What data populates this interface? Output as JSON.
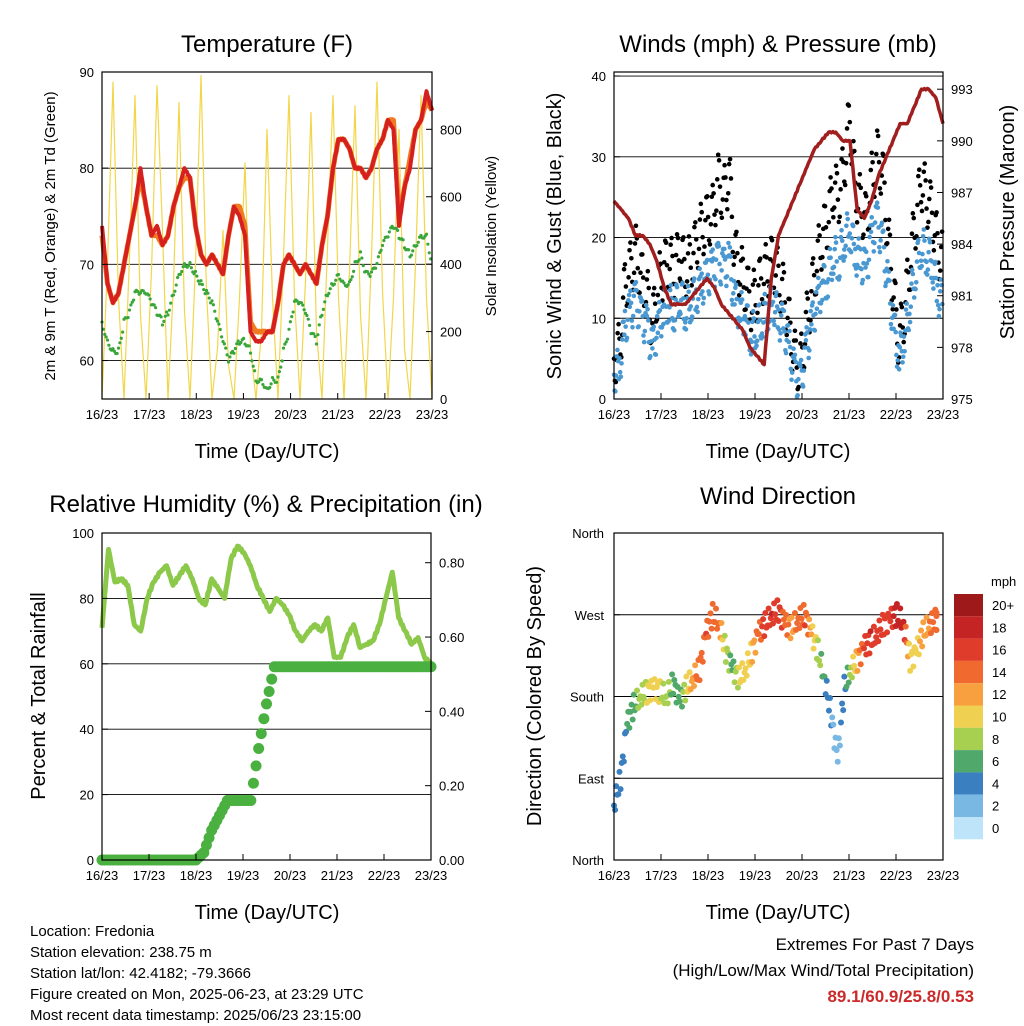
{
  "chart_data": [
    {
      "type": "line",
      "title": "Temperature (F)",
      "xlabel": "Time (Day/UTC)",
      "ylabel": "2m & 9m T (Red, Orange) & 2m Td (Green)",
      "y2label": "Solar Insolation (Yellow)",
      "x_ticks": [
        "16/23",
        "17/23",
        "18/23",
        "19/23",
        "20/23",
        "21/23",
        "22/23",
        "23/23"
      ],
      "y_ticks": [
        60,
        70,
        80,
        90
      ],
      "y2_ticks": [
        0,
        200,
        400,
        600,
        800
      ],
      "ylim": [
        56,
        90
      ],
      "y2lim": [
        0,
        970
      ],
      "colors": {
        "t2m": "#d62020",
        "t9m": "#f07a20",
        "td": "#3aa63a",
        "solar": "#f2d64a"
      },
      "series": [
        {
          "key": "t2m",
          "values": [
            74,
            68,
            66,
            67,
            70,
            73,
            76,
            80,
            76,
            73,
            74,
            72,
            73,
            76,
            78,
            80,
            79,
            74,
            71,
            70,
            71,
            70,
            69,
            73,
            76,
            75,
            73,
            63,
            62,
            62,
            63,
            63,
            66,
            70,
            71,
            70,
            69,
            70,
            69,
            68,
            72,
            75,
            80,
            83,
            83,
            82,
            80,
            80,
            79,
            80,
            82,
            83,
            85,
            84,
            74,
            78,
            80,
            84,
            85,
            88,
            86
          ]
        },
        {
          "key": "t9m",
          "values": [
            73,
            68,
            66,
            67,
            70,
            73,
            76,
            79,
            76,
            73,
            73,
            72,
            73,
            76,
            78,
            79,
            79,
            74,
            71,
            70,
            71,
            70,
            69,
            73,
            76,
            76,
            74,
            64,
            63,
            63,
            63,
            63,
            66,
            70,
            71,
            70,
            69,
            70,
            69,
            68,
            72,
            75,
            80,
            83,
            83,
            82,
            80,
            80,
            79,
            80,
            82,
            83,
            85,
            85,
            75,
            78,
            81,
            84,
            85,
            87,
            86
          ]
        },
        {
          "key": "td",
          "values": [
            64,
            62,
            61,
            61,
            64,
            65,
            67,
            67,
            67,
            66,
            65,
            64,
            65,
            67,
            69,
            70,
            70,
            69,
            68,
            67,
            66,
            64,
            62,
            60,
            61,
            62,
            62,
            61,
            58,
            58,
            57,
            58,
            58,
            61,
            63,
            66,
            66,
            65,
            63,
            62,
            65,
            67,
            68,
            69,
            68,
            68,
            70,
            71,
            69,
            69,
            70,
            72,
            73,
            74,
            73,
            72,
            71,
            72,
            73,
            73,
            70
          ]
        },
        {
          "key": "solar",
          "values": [
            0,
            400,
            940,
            300,
            0,
            420,
            900,
            250,
            0,
            380,
            930,
            500,
            0,
            340,
            880,
            260,
            0,
            400,
            960,
            320,
            0,
            150,
            500,
            100,
            0,
            300,
            700,
            150,
            0,
            200,
            800,
            300,
            0,
            420,
            900,
            300,
            0,
            350,
            850,
            200,
            0,
            450,
            900,
            300,
            0,
            380,
            870,
            250,
            0,
            420,
            940,
            320,
            0,
            300,
            800,
            150,
            0,
            400,
            900,
            300,
            0
          ]
        }
      ]
    },
    {
      "type": "line",
      "title": "Winds (mph) & Pressure (mb)",
      "xlabel": "Time (Day/UTC)",
      "ylabel": "Sonic Wind & Gust (Blue, Black)",
      "y2label": "Station Pressure (Maroon)",
      "x_ticks": [
        "16/23",
        "17/23",
        "18/23",
        "19/23",
        "20/23",
        "21/23",
        "22/23",
        "23/23"
      ],
      "y_ticks": [
        0,
        10,
        20,
        30,
        40
      ],
      "y2_ticks": [
        975,
        978,
        981,
        984,
        987,
        990,
        993
      ],
      "ylim": [
        0,
        40.5
      ],
      "y2lim": [
        975,
        994
      ],
      "colors": {
        "wind": "#4a98d2",
        "gust": "#000000",
        "pressure": "#a01e1e"
      },
      "series": [
        {
          "key": "wind",
          "values": [
            3,
            4,
            9,
            11,
            12,
            10,
            9,
            6,
            9,
            11,
            12,
            11,
            13,
            11,
            12,
            13,
            14,
            15,
            16,
            17,
            16,
            17,
            12,
            11,
            10,
            8,
            9,
            10,
            11,
            12,
            10,
            9,
            6,
            3,
            2,
            6,
            9,
            12,
            14,
            15,
            18,
            17,
            20,
            21,
            18,
            17,
            16,
            20,
            22,
            19,
            14,
            9,
            5,
            8,
            12,
            16,
            19,
            18,
            17,
            13,
            12
          ]
        },
        {
          "key": "gust",
          "values": [
            5,
            6,
            14,
            16,
            18,
            15,
            13,
            9,
            14,
            16,
            17,
            16,
            18,
            16,
            17,
            19,
            21,
            22,
            23,
            27,
            25,
            28,
            18,
            16,
            14,
            12,
            13,
            15,
            16,
            17,
            15,
            13,
            9,
            5,
            4,
            9,
            13,
            17,
            20,
            22,
            26,
            25,
            29,
            35,
            26,
            24,
            22,
            27,
            30,
            28,
            20,
            13,
            7,
            11,
            17,
            22,
            27,
            25,
            23,
            19,
            17
          ]
        },
        {
          "key": "pressure",
          "values": [
            986.5,
            986,
            985.5,
            984.5,
            984.5,
            984,
            983,
            981.5,
            980.5,
            980.5,
            980.5,
            981,
            981.5,
            982,
            981.5,
            980.5,
            980,
            979.5,
            979,
            978,
            977.5,
            977,
            982,
            984.5,
            985.5,
            986.5,
            987.5,
            988.5,
            989.5,
            990,
            990.5,
            990.5,
            990,
            990,
            986,
            985.5,
            986.5,
            988,
            989,
            990,
            991,
            991,
            992,
            993,
            993,
            992.5,
            991
          ]
        }
      ]
    },
    {
      "type": "line",
      "title": "Relative Humidity (%) & Precipitation (in)",
      "xlabel": "Time (Day/UTC)",
      "ylabel": "Percent & Total Rainfall",
      "x_ticks": [
        "16/23",
        "17/23",
        "18/23",
        "19/23",
        "20/23",
        "21/23",
        "22/23",
        "23/23"
      ],
      "y_ticks": [
        0,
        20,
        40,
        60,
        80,
        100
      ],
      "y2_ticks": [
        "0.00",
        "0.20",
        "0.40",
        "0.60",
        "0.80"
      ],
      "ylim": [
        0,
        100
      ],
      "y2lim": [
        0,
        0.88
      ],
      "colors": {
        "rh": "#8cc84a",
        "precip": "#4ab040"
      },
      "series": [
        {
          "key": "rh",
          "values": [
            71,
            95,
            85,
            86,
            84,
            72,
            70,
            80,
            85,
            88,
            90,
            84,
            87,
            90,
            86,
            80,
            78,
            86,
            83,
            80,
            92,
            96,
            94,
            90,
            84,
            80,
            76,
            80,
            78,
            75,
            70,
            67,
            70,
            72,
            70,
            74,
            62,
            62,
            68,
            72,
            65,
            66,
            67,
            72,
            80,
            88,
            74,
            70,
            66,
            68,
            62,
            60
          ]
        },
        {
          "key": "precip",
          "values": [
            0,
            0,
            0,
            0,
            0,
            0,
            0,
            0,
            0,
            0,
            0,
            0,
            0,
            0.02,
            0.08,
            0.12,
            0.16,
            0.16,
            0.16,
            0.16,
            0.3,
            0.42,
            0.52,
            0.52,
            0.52,
            0.52,
            0.52,
            0.52,
            0.52,
            0.52,
            0.52,
            0.52,
            0.52,
            0.52,
            0.52,
            0.52,
            0.52,
            0.52,
            0.52,
            0.52,
            0.52,
            0.52,
            0.52
          ]
        }
      ]
    },
    {
      "type": "scatter",
      "title": "Wind Direction",
      "xlabel": "Time (Day/UTC)",
      "ylabel": "Direction (Colored By Speed)",
      "x_ticks": [
        "16/23",
        "17/23",
        "18/23",
        "19/23",
        "20/23",
        "21/23",
        "22/23",
        "23/23"
      ],
      "y_ticks": [
        "North",
        "East",
        "South",
        "West",
        "North"
      ],
      "ylim": [
        0,
        360
      ],
      "legend_title": "mph",
      "legend_labels": [
        "20+",
        "18",
        "16",
        "14",
        "12",
        "10",
        "8",
        "6",
        "4",
        "2",
        "0"
      ],
      "legend_colors": [
        "#9e1a1a",
        "#c42424",
        "#e03c2c",
        "#f06a30",
        "#f8a040",
        "#f0d050",
        "#a8d050",
        "#50a86a",
        "#3a7fc0",
        "#7ab8e4",
        "#bde4f8"
      ],
      "points": [
        [
          0.0,
          60,
          3
        ],
        [
          0.02,
          90,
          4
        ],
        [
          0.04,
          150,
          5
        ],
        [
          0.06,
          170,
          6
        ],
        [
          0.08,
          180,
          8
        ],
        [
          0.1,
          185,
          9
        ],
        [
          0.12,
          190,
          10
        ],
        [
          0.14,
          185,
          9
        ],
        [
          0.16,
          180,
          8
        ],
        [
          0.18,
          195,
          6
        ],
        [
          0.2,
          175,
          5
        ],
        [
          0.22,
          190,
          9
        ],
        [
          0.24,
          200,
          12
        ],
        [
          0.26,
          210,
          14
        ],
        [
          0.28,
          250,
          15
        ],
        [
          0.3,
          270,
          14
        ],
        [
          0.32,
          260,
          13
        ],
        [
          0.34,
          230,
          8
        ],
        [
          0.36,
          210,
          6
        ],
        [
          0.38,
          200,
          9
        ],
        [
          0.4,
          210,
          10
        ],
        [
          0.42,
          230,
          11
        ],
        [
          0.44,
          250,
          14
        ],
        [
          0.46,
          260,
          16
        ],
        [
          0.48,
          270,
          17
        ],
        [
          0.5,
          275,
          16
        ],
        [
          0.52,
          260,
          14
        ],
        [
          0.54,
          255,
          12
        ],
        [
          0.56,
          265,
          14
        ],
        [
          0.58,
          270,
          15
        ],
        [
          0.6,
          250,
          11
        ],
        [
          0.62,
          230,
          8
        ],
        [
          0.64,
          200,
          5
        ],
        [
          0.66,
          160,
          3
        ],
        [
          0.68,
          110,
          2
        ],
        [
          0.7,
          190,
          4
        ],
        [
          0.72,
          210,
          8
        ],
        [
          0.74,
          220,
          12
        ],
        [
          0.76,
          235,
          15
        ],
        [
          0.78,
          240,
          17
        ],
        [
          0.8,
          250,
          16
        ],
        [
          0.82,
          260,
          15
        ],
        [
          0.84,
          265,
          16
        ],
        [
          0.86,
          270,
          18
        ],
        [
          0.88,
          260,
          17
        ],
        [
          0.9,
          220,
          9
        ],
        [
          0.92,
          230,
          10
        ],
        [
          0.94,
          250,
          12
        ],
        [
          0.96,
          260,
          13
        ],
        [
          0.98,
          265,
          14
        ]
      ]
    }
  ],
  "info": {
    "location": "Location: Fredonia",
    "elevation": "Station elevation: 238.75 m",
    "latlon": "Station lat/lon: 42.4182; -79.3666",
    "created": "Figure created on Mon, 2025-06-23, at 23:29 UTC",
    "recent": "Most recent data timestamp: 2025/06/23 23:15:00"
  },
  "extremes": {
    "line1": "Extremes For Past 7 Days",
    "line2": "(High/Low/Max Wind/Total Precipitation)",
    "values": "89.1/60.9/25.8/0.53"
  }
}
